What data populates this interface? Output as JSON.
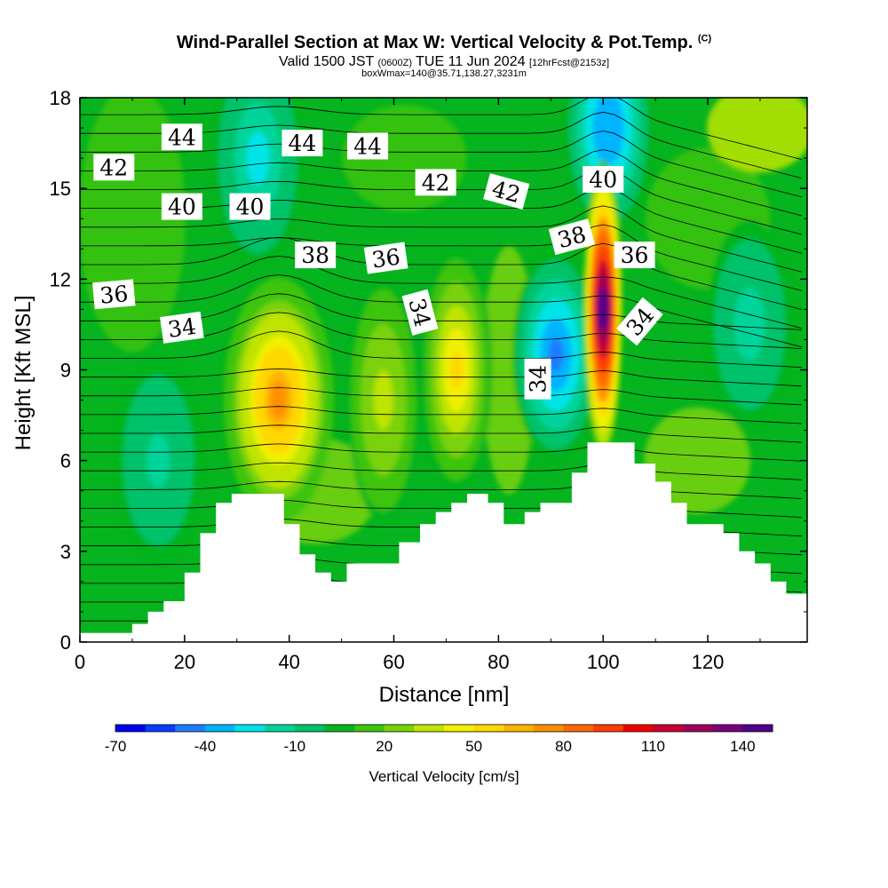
{
  "header": {
    "title": "Wind-Parallel Section at Max W: Vertical Velocity & Pot.Temp.",
    "copyright": "(C)",
    "valid_prefix": "Valid 1500 JST",
    "valid_utc": "(0600Z)",
    "valid_date": "TUE 11 Jun 2024",
    "forecast_tag": "[12hrFcst@2153z]",
    "location_line": "boxWmax=140@35.71,138.27,3231m"
  },
  "chart_data": {
    "type": "heatmap",
    "xlabel": "Distance [nm]",
    "ylabel": "Height [Kft MSL]",
    "xlim": [
      0,
      139
    ],
    "ylim": [
      0,
      18
    ],
    "x_ticks": [
      "0",
      "20",
      "40",
      "60",
      "80",
      "100",
      "120"
    ],
    "y_ticks": [
      "0",
      "3",
      "6",
      "9",
      "12",
      "15",
      "18"
    ],
    "colorbar_label": "Vertical Velocity [cm/s]",
    "colorbar_ticks": [
      "-70",
      "-40",
      "-10",
      "20",
      "50",
      "80",
      "110",
      "140"
    ],
    "colorbar_min": -70,
    "colorbar_max": 150,
    "colorbar_colors": [
      "#0000ee",
      "#0a3cff",
      "#1e7cff",
      "#00b4ff",
      "#00e4e8",
      "#00d49a",
      "#00c26a",
      "#05b41e",
      "#3cc40e",
      "#7ad208",
      "#bee400",
      "#f0f000",
      "#ffd800",
      "#ffb400",
      "#ff9000",
      "#ff6800",
      "#ff3c00",
      "#ee0000",
      "#c80032",
      "#a0005a",
      "#780078",
      "#50008c"
    ],
    "terrain": [
      [
        0,
        0.3
      ],
      [
        10,
        0.3
      ],
      [
        10,
        0.6
      ],
      [
        13,
        0.6
      ],
      [
        13,
        1.0
      ],
      [
        16,
        1.0
      ],
      [
        16,
        1.35
      ],
      [
        20,
        1.35
      ],
      [
        20,
        2.3
      ],
      [
        23,
        2.3
      ],
      [
        23,
        3.6
      ],
      [
        26,
        3.6
      ],
      [
        26,
        4.6
      ],
      [
        29,
        4.6
      ],
      [
        29,
        4.9
      ],
      [
        39,
        4.9
      ],
      [
        39,
        3.9
      ],
      [
        42,
        3.9
      ],
      [
        42,
        2.9
      ],
      [
        45,
        2.9
      ],
      [
        45,
        2.3
      ],
      [
        48,
        2.3
      ],
      [
        48,
        2.0
      ],
      [
        51,
        2.0
      ],
      [
        51,
        2.6
      ],
      [
        61,
        2.6
      ],
      [
        61,
        3.3
      ],
      [
        65,
        3.3
      ],
      [
        65,
        3.9
      ],
      [
        68,
        3.9
      ],
      [
        68,
        4.3
      ],
      [
        71,
        4.3
      ],
      [
        71,
        4.6
      ],
      [
        74,
        4.6
      ],
      [
        74,
        4.9
      ],
      [
        78,
        4.9
      ],
      [
        78,
        4.6
      ],
      [
        81,
        4.6
      ],
      [
        81,
        3.9
      ],
      [
        85,
        3.9
      ],
      [
        85,
        4.3
      ],
      [
        88,
        4.3
      ],
      [
        88,
        4.6
      ],
      [
        94,
        4.6
      ],
      [
        94,
        5.6
      ],
      [
        97,
        5.6
      ],
      [
        97,
        6.6
      ],
      [
        106,
        6.6
      ],
      [
        106,
        5.9
      ],
      [
        110,
        5.9
      ],
      [
        110,
        5.3
      ],
      [
        113,
        5.3
      ],
      [
        113,
        4.6
      ],
      [
        116,
        4.6
      ],
      [
        116,
        3.9
      ],
      [
        123,
        3.9
      ],
      [
        123,
        3.6
      ],
      [
        126,
        3.6
      ],
      [
        126,
        3.0
      ],
      [
        129,
        3.0
      ],
      [
        129,
        2.6
      ],
      [
        132,
        2.6
      ],
      [
        132,
        2.0
      ],
      [
        135,
        2.0
      ],
      [
        135,
        1.6
      ],
      [
        139,
        1.6
      ]
    ],
    "updraft_cores": [
      {
        "x": 38,
        "y": 8.0,
        "w_max": 70
      },
      {
        "x": 72,
        "y": 9.0,
        "w_max": 50
      },
      {
        "x": 58,
        "y": 8.0,
        "w_max": 35
      },
      {
        "x": 100,
        "y": 11.0,
        "w_max": 140
      }
    ],
    "downdraft_cores": [
      {
        "x": 91,
        "y": 9.5,
        "w_min": -45
      },
      {
        "x": 34,
        "y": 16.0,
        "w_min": -25
      },
      {
        "x": 101,
        "y": 17.0,
        "w_min": -40
      },
      {
        "x": 128,
        "y": 10.5,
        "w_min": -15
      },
      {
        "x": 15,
        "y": 6.0,
        "w_min": -12
      }
    ],
    "theta_contour_labels": [
      {
        "text": "44",
        "x": 19.5,
        "y": 16.7,
        "angle": 0
      },
      {
        "text": "44",
        "x": 42.5,
        "y": 16.5,
        "angle": 0
      },
      {
        "text": "44",
        "x": 55,
        "y": 16.4,
        "angle": 0
      },
      {
        "text": "42",
        "x": 6.5,
        "y": 15.7,
        "angle": 0
      },
      {
        "text": "42",
        "x": 68,
        "y": 15.2,
        "angle": 0
      },
      {
        "text": "42",
        "x": 81.5,
        "y": 14.9,
        "angle": 15
      },
      {
        "text": "40",
        "x": 19.5,
        "y": 14.4,
        "angle": 0
      },
      {
        "text": "40",
        "x": 32.5,
        "y": 14.4,
        "angle": 0
      },
      {
        "text": "40",
        "x": 100,
        "y": 15.3,
        "angle": 0
      },
      {
        "text": "38",
        "x": 45,
        "y": 12.8,
        "angle": 0
      },
      {
        "text": "38",
        "x": 94,
        "y": 13.4,
        "angle": -15
      },
      {
        "text": "36",
        "x": 58.5,
        "y": 12.7,
        "angle": -8
      },
      {
        "text": "36",
        "x": 106,
        "y": 12.8,
        "angle": 0
      },
      {
        "text": "36",
        "x": 6.5,
        "y": 11.5,
        "angle": -5
      },
      {
        "text": "34",
        "x": 19.5,
        "y": 10.4,
        "angle": -8
      },
      {
        "text": "34",
        "x": 65,
        "y": 10.9,
        "angle": 75
      },
      {
        "text": "34",
        "x": 87.5,
        "y": 8.7,
        "angle": -90
      },
      {
        "text": "34",
        "x": 107,
        "y": 10.6,
        "angle": -50
      }
    ]
  }
}
